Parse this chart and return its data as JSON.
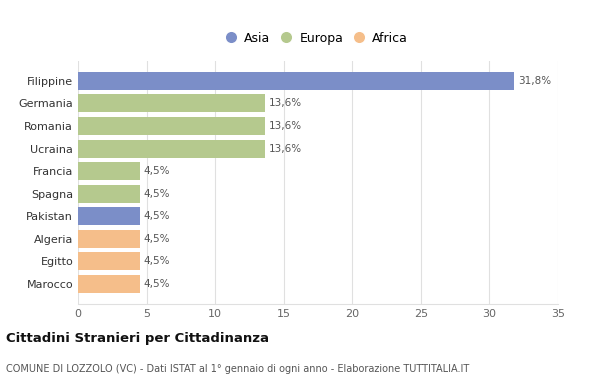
{
  "categories": [
    "Marocco",
    "Egitto",
    "Algeria",
    "Pakistan",
    "Spagna",
    "Francia",
    "Ucraina",
    "Romania",
    "Germania",
    "Filippine"
  ],
  "values": [
    4.5,
    4.5,
    4.5,
    4.5,
    4.5,
    4.5,
    13.6,
    13.6,
    13.6,
    31.8
  ],
  "colors": [
    "#f5be8a",
    "#f5be8a",
    "#f5be8a",
    "#7b8ec8",
    "#b5c98e",
    "#b5c98e",
    "#b5c98e",
    "#b5c98e",
    "#b5c98e",
    "#7b8ec8"
  ],
  "labels": [
    "4,5%",
    "4,5%",
    "4,5%",
    "4,5%",
    "4,5%",
    "4,5%",
    "13,6%",
    "13,6%",
    "13,6%",
    "31,8%"
  ],
  "legend_labels": [
    "Asia",
    "Europa",
    "Africa"
  ],
  "legend_colors": [
    "#7b8ec8",
    "#b5c98e",
    "#f5be8a"
  ],
  "title": "Cittadini Stranieri per Cittadinanza",
  "subtitle": "COMUNE DI LOZZOLO (VC) - Dati ISTAT al 1° gennaio di ogni anno - Elaborazione TUTTITALIA.IT",
  "xlim": [
    0,
    35
  ],
  "xticks": [
    0,
    5,
    10,
    15,
    20,
    25,
    30,
    35
  ],
  "background_color": "#ffffff",
  "grid_color": "#e0e0e0"
}
